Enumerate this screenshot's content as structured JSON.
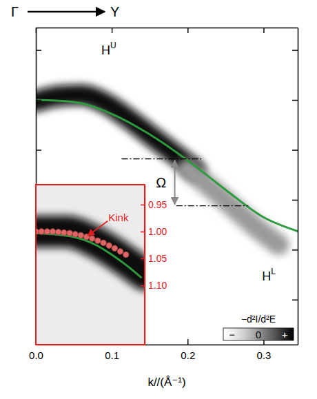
{
  "chart_data": [
    {
      "type": "line",
      "direction": {
        "from": "Γ",
        "to": "Y"
      },
      "x_label": "k//(Å⁻¹)",
      "xlim": [
        0,
        0.345
      ],
      "xticks": [
        {
          "value": 0,
          "label": "0.0"
        },
        0.1,
        0.2,
        0.3
      ],
      "ylim": [
        0.1,
        6.45
      ],
      "yticks": [
        1,
        2,
        3,
        4,
        5,
        6
      ],
      "tick_labels": "x",
      "series": [
        {
          "type": "band",
          "color": "#111111",
          "x": [
            0,
            0.03,
            0.06,
            0.09,
            0.12,
            0.15,
            0.18,
            0.21
          ],
          "values": [
            4.97,
            5.08,
            5.1,
            4.95,
            4.65,
            4.3,
            3.95,
            3.6
          ]
        },
        {
          "type": "band",
          "color": "#9a9a9a",
          "x": [
            0.2,
            0.23,
            0.26,
            0.29,
            0.32
          ],
          "values": [
            3.62,
            3.25,
            2.85,
            2.45,
            2.1
          ]
        },
        {
          "type": "line",
          "color": "#2e9a3e",
          "x": [
            0,
            0.05,
            0.1,
            0.15,
            0.2,
            0.25,
            0.3,
            0.345
          ],
          "values": [
            5.0,
            4.96,
            4.72,
            4.31,
            3.79,
            3.2,
            2.65,
            2.37
          ]
        }
      ],
      "annotations": [
        {
          "text": "HU",
          "x": 0.096,
          "y": 6.0
        },
        {
          "text": "HL",
          "x": 0.307,
          "y": 1.47
        }
      ],
      "omega": {
        "label": "Ω",
        "label_x": 0.165,
        "label_y": 3.34,
        "x": 0.183,
        "upper": 3.82,
        "lower": 2.88,
        "upper_x": [
          0.113,
          0.218
        ],
        "lower_x": [
          0.185,
          0.28
        ]
      },
      "colorbar": {
        "label": "−d²I/d²E",
        "range": [
          -1,
          1
        ],
        "ticks": [
          {
            "value": -0.75,
            "label": "−"
          },
          0,
          {
            "value": 0.75,
            "label": "+"
          }
        ]
      }
    },
    {
      "type": "line",
      "xlim": [
        0,
        0.145
      ],
      "ylim": [
        0.913,
        1.21
      ],
      "yticks": [
        0.95,
        {
          "value": 1,
          "label": "1.00"
        },
        1.05,
        {
          "value": 1.1,
          "label": "1.10"
        }
      ],
      "tick_labels": "y",
      "color": "#e02020",
      "series": [
        {
          "type": "band",
          "color": "#111111",
          "x": [
            0,
            0.04,
            0.08,
            0.12,
            0.145
          ],
          "values": [
            1.0,
            1.0,
            1.02,
            1.055,
            1.08
          ]
        },
        {
          "type": "line",
          "color": "#2e9a3e",
          "x": [
            0,
            0.05,
            0.08,
            0.1,
            0.12,
            0.14
          ],
          "values": [
            1.003,
            1.01,
            1.025,
            1.042,
            1.062,
            1.085
          ]
        },
        {
          "type": "scatter",
          "marker": "circle",
          "color": "#e06666",
          "x": [
            0,
            0.0075,
            0.015,
            0.0225,
            0.03,
            0.0375,
            0.045,
            0.0525,
            0.06,
            0.0675,
            0.075,
            0.0825,
            0.09,
            0.0975,
            0.105,
            0.1125,
            0.12
          ],
          "values": [
            1.0,
            1.0,
            1.0,
            1.0,
            1.001,
            1.002,
            1.003,
            1.005,
            1.007,
            1.01,
            1.013,
            1.017,
            1.021,
            1.026,
            1.031,
            1.037,
            1.043
          ]
        }
      ],
      "annotations": [
        {
          "text": "Kink",
          "x": 0.11,
          "y": 0.974,
          "target_x": 0.069,
          "target_y": 1.008
        }
      ]
    }
  ]
}
